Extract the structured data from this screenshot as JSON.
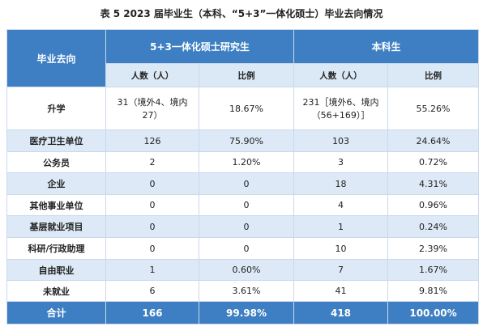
{
  "header": {
    "title": "表 5   2023 届毕业生（本科、“5+3”一体化硕士）毕业去向情况"
  },
  "table": {
    "row_label": "毕业去向",
    "groups": [
      "5+3一体化硕士研究生",
      "本科生"
    ],
    "subheaders": [
      "人数（人）",
      "比例",
      "人数（人）",
      "比例"
    ],
    "rows": [
      [
        "升学",
        "31（境外4、境内27）",
        "18.67%",
        "231［境外6、境内（56+169）］",
        "55.26%"
      ],
      [
        "医疗卫生单位",
        "126",
        "75.90%",
        "103",
        "24.64%"
      ],
      [
        "公务员",
        "2",
        "1.20%",
        "3",
        "0.72%"
      ],
      [
        "企业",
        "0",
        "0",
        "18",
        "4.31%"
      ],
      [
        "其他事业单位",
        "0",
        "0",
        "4",
        "0.96%"
      ],
      [
        "基层就业项目",
        "0",
        "0",
        "1",
        "0.24%"
      ],
      [
        "科研/行政助理",
        "0",
        "0",
        "10",
        "2.39%"
      ],
      [
        "自由职业",
        "1",
        "0.60%",
        "7",
        "1.67%"
      ],
      [
        "未就业",
        "6",
        "3.61%",
        "41",
        "9.81%"
      ]
    ],
    "total": [
      "合计",
      "166",
      "99.98%",
      "418",
      "100.00%"
    ]
  }
}
